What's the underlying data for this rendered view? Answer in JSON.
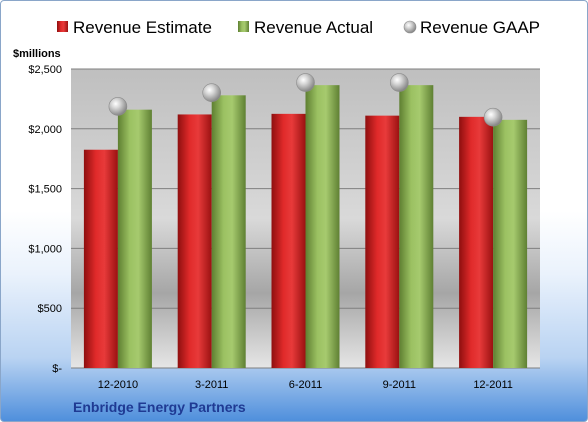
{
  "chart_data": {
    "type": "bar",
    "title": "",
    "ylabel": "$millions",
    "xlabel": "",
    "company": "Enbridge Energy Partners",
    "categories": [
      "12-2010",
      "3-2011",
      "6-2011",
      "9-2011",
      "12-2011"
    ],
    "series": [
      {
        "name": "Revenue Estimate",
        "kind": "bar",
        "color": "#d42020",
        "values": [
          1825,
          2120,
          2125,
          2110,
          2100
        ]
      },
      {
        "name": "Revenue Actual",
        "kind": "bar",
        "color": "#8db356",
        "values": [
          2160,
          2280,
          2365,
          2365,
          2075
        ]
      },
      {
        "name": "Revenue GAAP",
        "kind": "marker",
        "color": "#b0b0b0",
        "values": [
          2170,
          2285,
          2370,
          2370,
          2080
        ]
      }
    ],
    "ylim": [
      0,
      2500
    ],
    "yticks": [
      0,
      500,
      1000,
      1500,
      2000,
      2500
    ],
    "ytick_labels": [
      "$-",
      "$500",
      "$1,000",
      "$1,500",
      "$2,000",
      "$2,500"
    ],
    "grid": true,
    "legend_position": "top"
  }
}
